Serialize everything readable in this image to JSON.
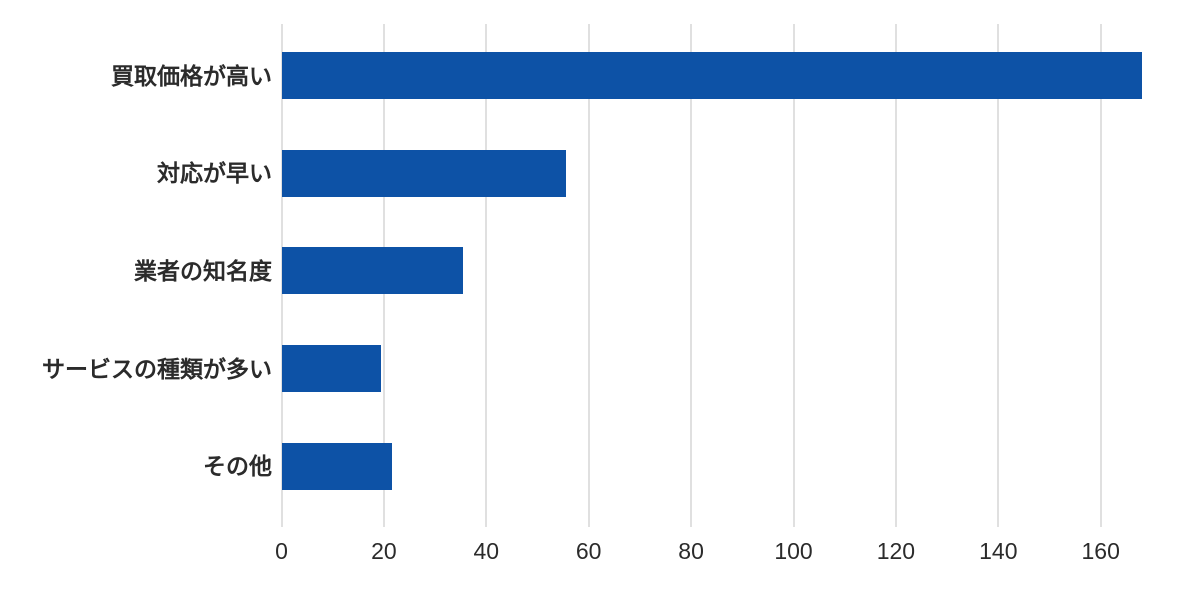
{
  "chart_data": {
    "type": "bar",
    "orientation": "horizontal",
    "title": "",
    "xlabel": "",
    "ylabel": "",
    "categories": [
      "買取価格が高い",
      "対応が早い",
      "業者の知名度",
      "サービスの種類が多い",
      "その他"
    ],
    "values": [
      168,
      55.5,
      35.5,
      19.5,
      21.5
    ],
    "x_ticks": [
      0,
      20,
      40,
      60,
      80,
      100,
      120,
      140,
      160
    ],
    "xlim": [
      0,
      173
    ],
    "grid": "vertical-only",
    "legend": "none",
    "colors": {
      "bar": "#0d52a6",
      "gridline": "#e0e0e0",
      "text": "#2b2b2b",
      "background": "#ffffff"
    }
  }
}
